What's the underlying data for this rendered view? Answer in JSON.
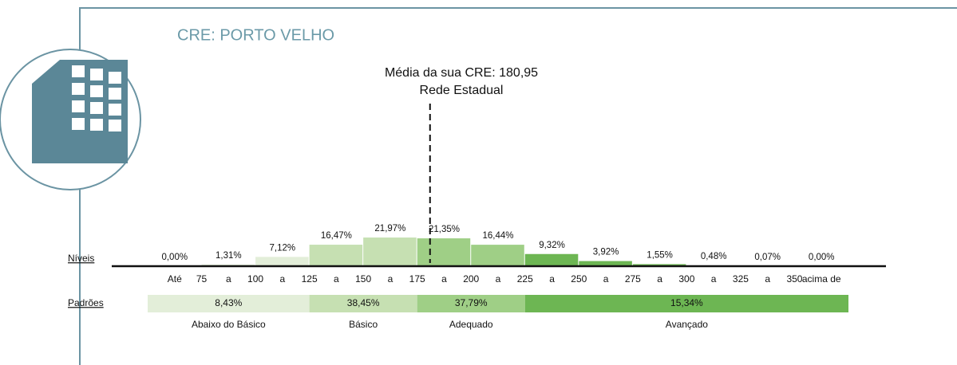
{
  "chart_data": {
    "type": "histogram",
    "title": "CRE: PORTO VELHO",
    "annotation": [
      "Média da sua CRE: 180,95",
      "Rede Estadual"
    ],
    "mean": 180.95,
    "axis_label": "Níveis",
    "bins": [
      50,
      75,
      100,
      125,
      150,
      175,
      200,
      225,
      250,
      275,
      300,
      325,
      350,
      375
    ],
    "bin_labels": [
      "Até",
      "a",
      "a",
      "a",
      "a",
      "a",
      "a",
      "a",
      "a",
      "a",
      "a",
      "a",
      "acima de"
    ],
    "values": [
      0.0,
      1.31,
      7.12,
      16.47,
      21.97,
      21.35,
      16.44,
      9.32,
      3.92,
      1.55,
      0.48,
      0.07,
      0.0
    ],
    "value_labels": [
      "0,00%",
      "1,31%",
      "7,12%",
      "16,47%",
      "21,97%",
      "21,35%",
      "16,44%",
      "9,32%",
      "3,92%",
      "1,55%",
      "0,48%",
      "0,07%",
      "0,00%"
    ],
    "colors": [
      "#e3eed9",
      "#e3eed9",
      "#e3eed9",
      "#c6e0b2",
      "#c6e0b2",
      "#9fcf86",
      "#9fcf86",
      "#6db653",
      "#6db653",
      "#6db653",
      "#6db653",
      "#6db653",
      "#6db653"
    ],
    "xlim": [
      50,
      375
    ],
    "xticks": [
      75,
      100,
      125,
      150,
      175,
      200,
      225,
      250,
      275,
      300,
      325,
      350
    ],
    "ylim": [
      0,
      22
    ],
    "standards": {
      "label": "Padrões",
      "bins": [
        50,
        125,
        175,
        225,
        375
      ],
      "names": [
        "Abaixo do Básico",
        "Básico",
        "Adequado",
        "Avançado"
      ],
      "values": [
        8.43,
        38.45,
        37.79,
        15.34
      ],
      "value_labels": [
        "8,43%",
        "38,45%",
        "37,79%",
        "15,34%"
      ],
      "colors": [
        "#e3eed9",
        "#c6e0b2",
        "#9fcf86",
        "#6db653"
      ]
    }
  }
}
